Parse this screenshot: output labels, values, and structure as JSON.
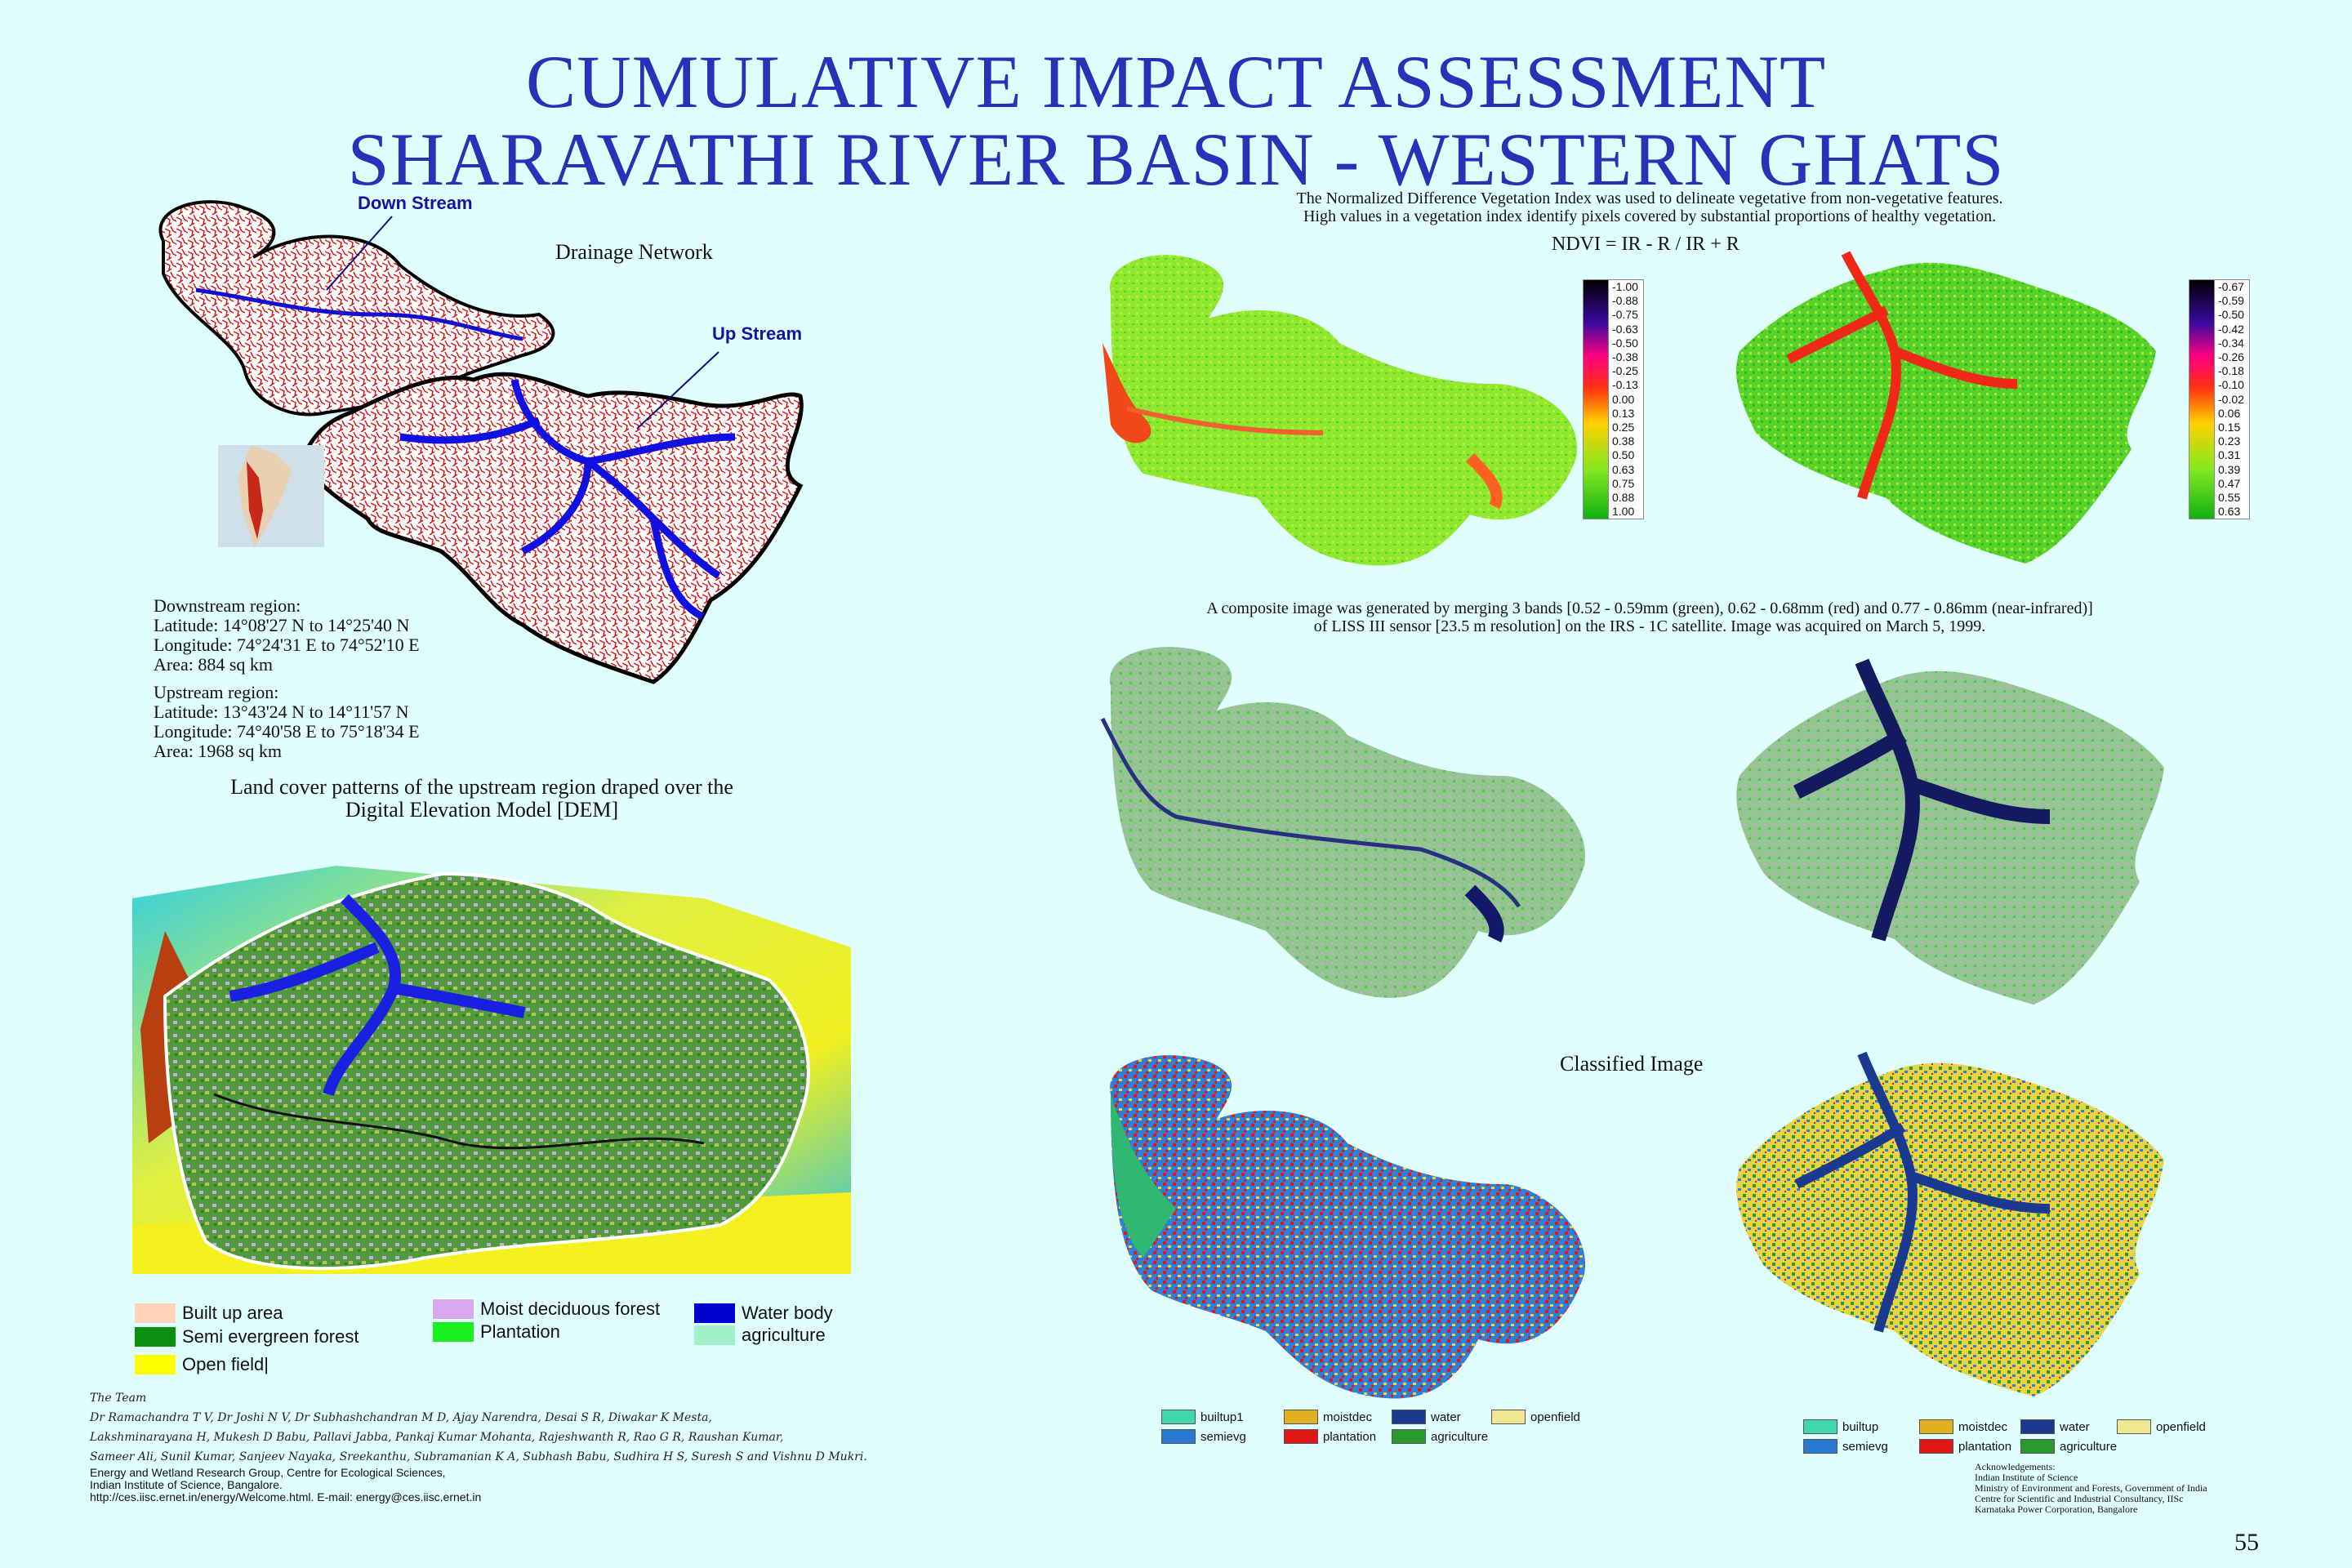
{
  "title": {
    "line1": "CUMULATIVE IMPACT ASSESSMENT",
    "line2": "SHARAVATHI RIVER BASIN - WESTERN GHATS"
  },
  "drainage": {
    "down_stream": "Down  Stream",
    "up_stream": "Up  Stream",
    "caption": "Drainage Network"
  },
  "regions": {
    "downstream": [
      "Downstream region:",
      "Latitude: 14°08'27 N to 14°25'40 N",
      "Longitude: 74°24'31 E to 74°52'10 E",
      "Area: 884 sq km"
    ],
    "upstream": [
      "Upstream region:",
      "Latitude: 13°43'24 N to 14°11'57 N",
      "Longitude: 74°40'58 E to 75°18'34 E",
      "Area: 1968 sq km"
    ]
  },
  "dem": {
    "caption_line1": "Land cover patterns of the upstream region draped over the",
    "caption_line2": "Digital Elevation Model [DEM]",
    "legend": [
      {
        "label": "Built up area",
        "color": "#ffd3b8"
      },
      {
        "label": "Moist deciduous forest",
        "color": "#d8a8f0"
      },
      {
        "label": "Water body",
        "color": "#0000cc"
      },
      {
        "label": "Semi evergreen forest",
        "color": "#0a8f10"
      },
      {
        "label": "Plantation",
        "color": "#18f020"
      },
      {
        "label": "agriculture",
        "color": "#a0f0c8"
      },
      {
        "label": "Open field|",
        "color": "#ffff00"
      }
    ]
  },
  "ndvi": {
    "desc_line1": "The Normalized Difference Vegetation Index was used to delineate vegetative from non-vegetative features.",
    "desc_line2": "High values in a vegetation index identify pixels covered by substantial proportions of healthy vegetation.",
    "formula": "NDVI = IR - R / IR + R",
    "scale_left": [
      "-1.00",
      "-0.88",
      "-0.75",
      "-0.63",
      "-0.50",
      "-0.38",
      "-0.25",
      "-0.13",
      "0.00",
      "0.13",
      "0.25",
      "0.38",
      "0.50",
      "0.63",
      "0.75",
      "0.88",
      "1.00"
    ],
    "scale_right": [
      "-0.67",
      "-0.59",
      "-0.50",
      "-0.42",
      "-0.34",
      "-0.26",
      "-0.18",
      "-0.10",
      "-0.02",
      "0.06",
      "0.15",
      "0.23",
      "0.31",
      "0.39",
      "0.47",
      "0.55",
      "0.63"
    ]
  },
  "composite": {
    "desc_line1": "A composite image was generated by merging 3 bands [0.52 - 0.59mm (green), 0.62 - 0.68mm (red) and 0.77 - 0.86mm (near-infrared)]",
    "desc_line2": "of LISS III sensor [23.5 m resolution] on the IRS - 1C satellite. Image was acquired on March 5, 1999."
  },
  "classified": {
    "caption": "Classified Image",
    "legend_left": [
      {
        "label": "builtup1",
        "color": "#40d8a8"
      },
      {
        "label": "moistdec",
        "color": "#e0b020"
      },
      {
        "label": "water",
        "color": "#1a3a90"
      },
      {
        "label": "openfield",
        "color": "#f0e890"
      },
      {
        "label": "semievg",
        "color": "#2878d0"
      },
      {
        "label": "plantation",
        "color": "#e01818"
      },
      {
        "label": "agriculture",
        "color": "#2a9a30"
      }
    ],
    "legend_right": [
      {
        "label": "builtup",
        "color": "#40d8a8"
      },
      {
        "label": "moistdec",
        "color": "#e0b020"
      },
      {
        "label": "water",
        "color": "#1a3a90"
      },
      {
        "label": "openfield",
        "color": "#f0e890"
      },
      {
        "label": "semievg",
        "color": "#2878d0"
      },
      {
        "label": "plantation",
        "color": "#e01818"
      },
      {
        "label": "agriculture",
        "color": "#2a9a30"
      }
    ]
  },
  "team": {
    "heading": "The Team",
    "line1": "Dr Ramachandra T V, Dr Joshi N V, Dr Subhashchandran M D, Ajay Narendra, Desai S R, Diwakar K Mesta,",
    "line2": "Lakshminarayana H, Mukesh D Babu, Pallavi Jabba, Pankaj Kumar Mohanta, Rajeshwanth R, Rao G R, Raushan Kumar,",
    "line3": "Sameer Ali, Sunil Kumar, Sanjeev Nayaka, Sreekanthu, Subramanian K A, Subhash Babu, Sudhira H S, Suresh S and Vishnu D Mukri.",
    "line4": "Energy and Wetland Research Group, Centre for Ecological Sciences,",
    "line5": "Indian Institute of Science, Bangalore.",
    "line6": "http://ces.iisc.ernet.in/energy/Welcome.html. E-mail: energy@ces.iisc.ernet.in"
  },
  "acknowledgements": [
    "Acknowledgements:",
    "Indian Institute of Science",
    "Ministry of Environment and Forests, Government of India",
    "Centre for Scientific and Industrial Consultancy, IISc",
    "Karnataka Power Corporation, Bangalore"
  ],
  "page_number": "55"
}
